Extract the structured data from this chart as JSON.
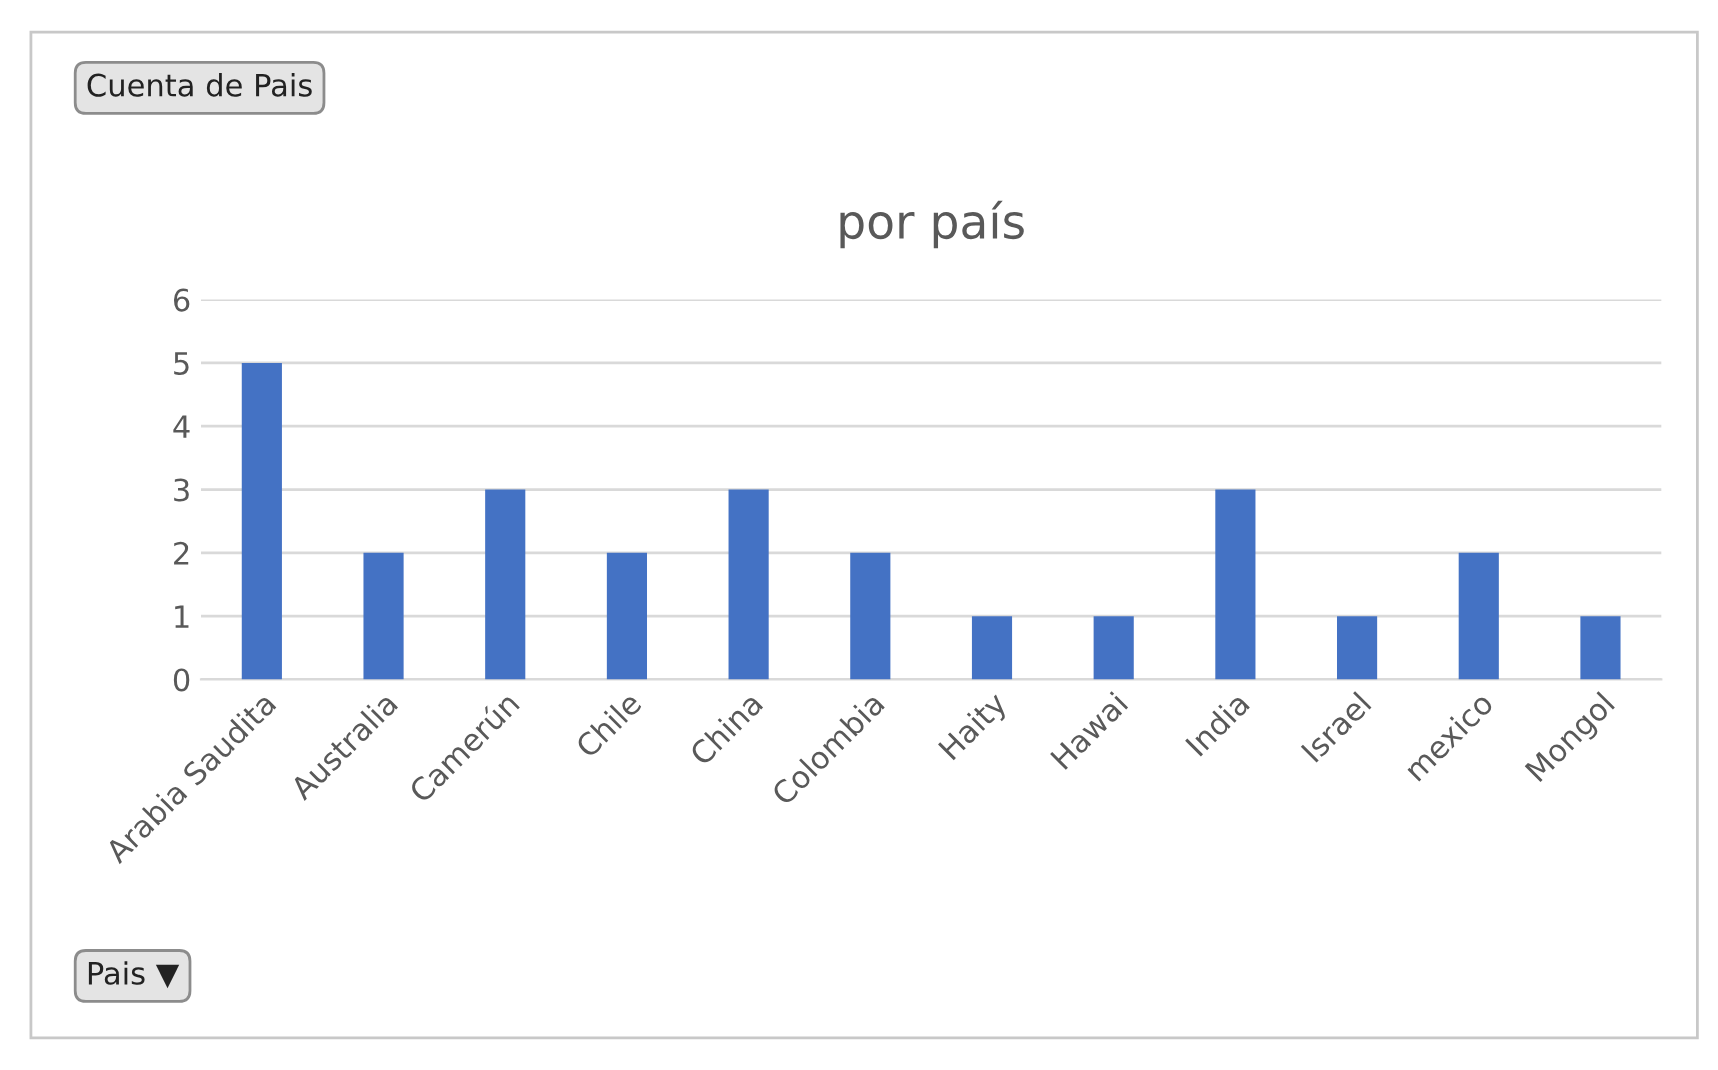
{
  "chart_data": {
    "type": "bar",
    "title": "por país",
    "categories": [
      "Arabia Saudita",
      "Australia",
      "Camerún",
      "Chile",
      "China",
      "Colombia",
      "Haity",
      "Hawai",
      "India",
      "Israel",
      "mexico",
      "Mongol"
    ],
    "values": [
      5,
      2,
      3,
      2,
      3,
      2,
      1,
      1,
      3,
      1,
      2,
      1
    ],
    "color": "#4472c4",
    "ylim": [
      0,
      6
    ],
    "yticks": [
      0,
      1,
      2,
      3,
      4,
      5,
      6
    ],
    "grid": "y",
    "annotations": [
      "Cuenta de Pais",
      "Pais ▼"
    ]
  }
}
